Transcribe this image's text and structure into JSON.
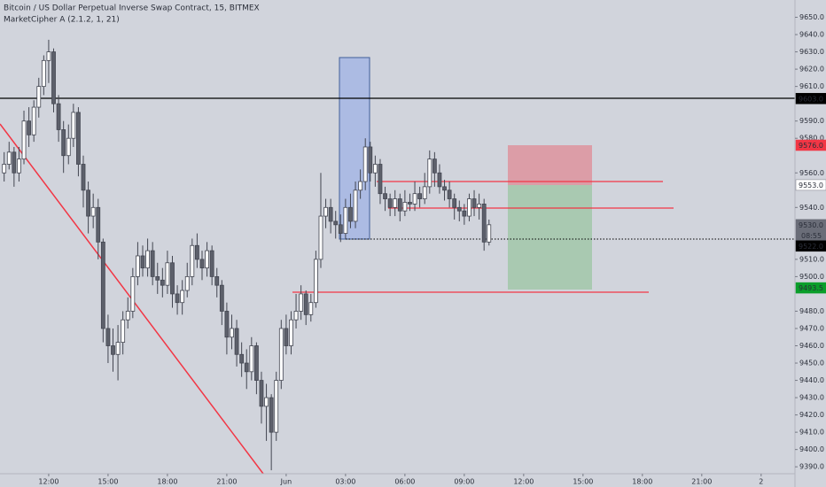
{
  "chart_data": {
    "type": "candlestick",
    "title": "Bitcoin / US Dollar Perpetual Inverse Swap Contract, 15, BITMEX",
    "subtitle": "MarketCipher A (2.1.2, 1, 21)",
    "up_color": "#ffffff",
    "down_color": "#5d606b",
    "x": [
      9.75,
      10,
      10.25,
      10.5,
      10.75,
      11,
      11.25,
      11.5,
      11.75,
      12,
      12.25,
      12.5,
      12.75,
      13,
      13.25,
      13.5,
      13.75,
      14,
      14.25,
      14.5,
      14.75,
      15,
      15.25,
      15.5,
      15.75,
      16,
      16.25,
      16.5,
      16.75,
      17,
      17.25,
      17.5,
      17.75,
      18,
      18.25,
      18.5,
      18.75,
      19,
      19.25,
      19.5,
      19.75,
      20,
      20.25,
      20.5,
      20.75,
      21,
      21.25,
      21.5,
      21.75,
      22,
      22.25,
      22.5,
      22.75,
      23,
      23.25,
      23.5,
      23.75,
      24,
      24.25,
      24.5,
      24.75,
      25,
      25.25,
      25.5,
      25.75,
      26,
      26.25,
      26.5,
      26.75,
      27,
      27.25,
      27.5,
      27.75,
      28,
      28.25,
      28.5,
      28.75,
      29,
      29.25,
      29.5,
      29.75,
      30,
      30.25,
      30.5,
      30.75,
      31,
      31.25,
      31.5,
      31.75,
      32,
      32.25,
      32.5,
      32.75,
      33,
      33.25,
      33.5,
      33.75,
      34,
      34.25
    ],
    "open": [
      9560,
      9565,
      9572,
      9560,
      9568,
      9590,
      9582,
      9598,
      9610,
      9625,
      9630,
      9600,
      9585,
      9570,
      9580,
      9595,
      9565,
      9550,
      9535,
      9540,
      9520,
      9470,
      9460,
      9455,
      9462,
      9475,
      9480,
      9500,
      9512,
      9505,
      9515,
      9500,
      9498,
      9495,
      9508,
      9490,
      9485,
      9492,
      9500,
      9518,
      9510,
      9505,
      9515,
      9500,
      9495,
      9480,
      9465,
      9470,
      9455,
      9450,
      9445,
      9460,
      9440,
      9425,
      9430,
      9410,
      9440,
      9470,
      9460,
      9475,
      9480,
      9490,
      9478,
      9485,
      9510,
      9535,
      9540,
      9532,
      9530,
      9525,
      9540,
      9532,
      9550,
      9555,
      9575,
      9560,
      9565,
      9548,
      9545,
      9540,
      9545,
      9538,
      9543,
      9542,
      9548,
      9545,
      9552,
      9568,
      9560,
      9552,
      9550,
      9545,
      9540,
      9538,
      9535,
      9545,
      9540,
      9542,
      9520
    ],
    "high": [
      9572,
      9578,
      9575,
      9575,
      9596,
      9598,
      9602,
      9615,
      9628,
      9637,
      9632,
      9605,
      9590,
      9588,
      9600,
      9598,
      9570,
      9555,
      9548,
      9545,
      9522,
      9478,
      9470,
      9472,
      9480,
      9488,
      9505,
      9520,
      9518,
      9522,
      9520,
      9508,
      9505,
      9515,
      9512,
      9495,
      9498,
      9508,
      9522,
      9525,
      9515,
      9520,
      9518,
      9505,
      9498,
      9485,
      9478,
      9475,
      9462,
      9458,
      9465,
      9462,
      9445,
      9438,
      9432,
      9445,
      9475,
      9478,
      9480,
      9490,
      9495,
      9492,
      9490,
      9515,
      9560,
      9545,
      9545,
      9538,
      9536,
      9545,
      9548,
      9555,
      9562,
      9580,
      9578,
      9570,
      9568,
      9552,
      9548,
      9550,
      9548,
      9550,
      9548,
      9555,
      9552,
      9560,
      9573,
      9572,
      9565,
      9556,
      9555,
      9548,
      9544,
      9542,
      9548,
      9550,
      9548,
      9545,
      9533
    ],
    "low": [
      9555,
      9562,
      9552,
      9555,
      9565,
      9575,
      9578,
      9592,
      9605,
      9612,
      9595,
      9578,
      9560,
      9565,
      9575,
      9558,
      9540,
      9525,
      9528,
      9510,
      9462,
      9450,
      9445,
      9440,
      9455,
      9470,
      9476,
      9495,
      9500,
      9500,
      9495,
      9490,
      9488,
      9490,
      9482,
      9478,
      9478,
      9488,
      9495,
      9505,
      9498,
      9500,
      9495,
      9488,
      9472,
      9455,
      9458,
      9448,
      9442,
      9435,
      9440,
      9432,
      9415,
      9405,
      9388,
      9405,
      9435,
      9455,
      9455,
      9470,
      9475,
      9472,
      9474,
      9482,
      9505,
      9528,
      9525,
      9522,
      9520,
      9522,
      9528,
      9528,
      9545,
      9550,
      9555,
      9552,
      9542,
      9538,
      9535,
      9535,
      9532,
      9535,
      9538,
      9538,
      9540,
      9542,
      9548,
      9552,
      9548,
      9544,
      9540,
      9533,
      9532,
      9530,
      9532,
      9535,
      9533,
      9515,
      9518
    ],
    "close": [
      9565,
      9572,
      9560,
      9568,
      9590,
      9582,
      9598,
      9610,
      9625,
      9630,
      9600,
      9585,
      9570,
      9580,
      9595,
      9565,
      9550,
      9535,
      9540,
      9520,
      9470,
      9460,
      9455,
      9462,
      9475,
      9480,
      9500,
      9512,
      9505,
      9515,
      9500,
      9498,
      9495,
      9508,
      9490,
      9485,
      9492,
      9500,
      9518,
      9510,
      9505,
      9515,
      9500,
      9495,
      9480,
      9465,
      9470,
      9455,
      9450,
      9445,
      9460,
      9440,
      9425,
      9430,
      9410,
      9440,
      9470,
      9460,
      9475,
      9480,
      9490,
      9478,
      9485,
      9510,
      9535,
      9540,
      9532,
      9530,
      9525,
      9540,
      9532,
      9550,
      9555,
      9575,
      9560,
      9565,
      9548,
      9545,
      9540,
      9545,
      9538,
      9543,
      9542,
      9548,
      9545,
      9552,
      9568,
      9560,
      9552,
      9550,
      9545,
      9540,
      9538,
      9535,
      9545,
      9540,
      9542,
      9520,
      9530
    ],
    "xlim": [
      9.54,
      49.71
    ],
    "xticks": [
      {
        "value": 12,
        "label": "12:00"
      },
      {
        "value": 15,
        "label": "15:00"
      },
      {
        "value": 18,
        "label": "18:00"
      },
      {
        "value": 21,
        "label": "21:00"
      },
      {
        "value": 24,
        "label": "Jun"
      },
      {
        "value": 27,
        "label": "03:00"
      },
      {
        "value": 30,
        "label": "06:00"
      },
      {
        "value": 33,
        "label": "09:00"
      },
      {
        "value": 36,
        "label": "12:00"
      },
      {
        "value": 39,
        "label": "15:00"
      },
      {
        "value": 42,
        "label": "18:00"
      },
      {
        "value": 45,
        "label": "21:00"
      },
      {
        "value": 48,
        "label": "2"
      }
    ],
    "ylim": [
      9386,
      9660
    ],
    "yticks": [
      {
        "value": 9650,
        "label": "9650.0"
      },
      {
        "value": 9640,
        "label": "9640.0"
      },
      {
        "value": 9630,
        "label": "9630.0"
      },
      {
        "value": 9620,
        "label": "9620.0"
      },
      {
        "value": 9610,
        "label": "9610.0"
      },
      {
        "value": 9590,
        "label": "9590.0"
      },
      {
        "value": 9580,
        "label": "9580.0"
      },
      {
        "value": 9560,
        "label": "9560.0"
      },
      {
        "value": 9540,
        "label": "9540.0"
      },
      {
        "value": 9510,
        "label": "9510.0"
      },
      {
        "value": 9500,
        "label": "9500.0"
      },
      {
        "value": 9480,
        "label": "9480.0"
      },
      {
        "value": 9470,
        "label": "9470.0"
      },
      {
        "value": 9460,
        "label": "9460.0"
      },
      {
        "value": 9450,
        "label": "9450.0"
      },
      {
        "value": 9440,
        "label": "9440.0"
      },
      {
        "value": 9430,
        "label": "9430.0"
      },
      {
        "value": 9420,
        "label": "9420.0"
      },
      {
        "value": 9410,
        "label": "9410.0"
      },
      {
        "value": 9400,
        "label": "9400.0"
      },
      {
        "value": 9390,
        "label": "9390.0"
      }
    ],
    "price_labels": [
      {
        "value": 9603,
        "label": "9603.0",
        "color": "#000000",
        "text_color": "#ffffff"
      },
      {
        "value": 9576,
        "label": "9576.0",
        "color": "#f23645",
        "text_color": "#ffffff"
      },
      {
        "value": 9553,
        "label": "9553.0",
        "color": "#ffffff",
        "text_color": "#131722"
      },
      {
        "value": 9530,
        "label": "9530.0",
        "color": "#6a6d78",
        "text_color": "#ffffff",
        "countdown": "08:55"
      },
      {
        "value": 9522,
        "label": "9522.0",
        "color": "#000000",
        "text_color": "#ffffff"
      },
      {
        "value": 9493.5,
        "label": "9493.5",
        "color": "#0a9e2a",
        "text_color": "#ffffff"
      }
    ]
  }
}
